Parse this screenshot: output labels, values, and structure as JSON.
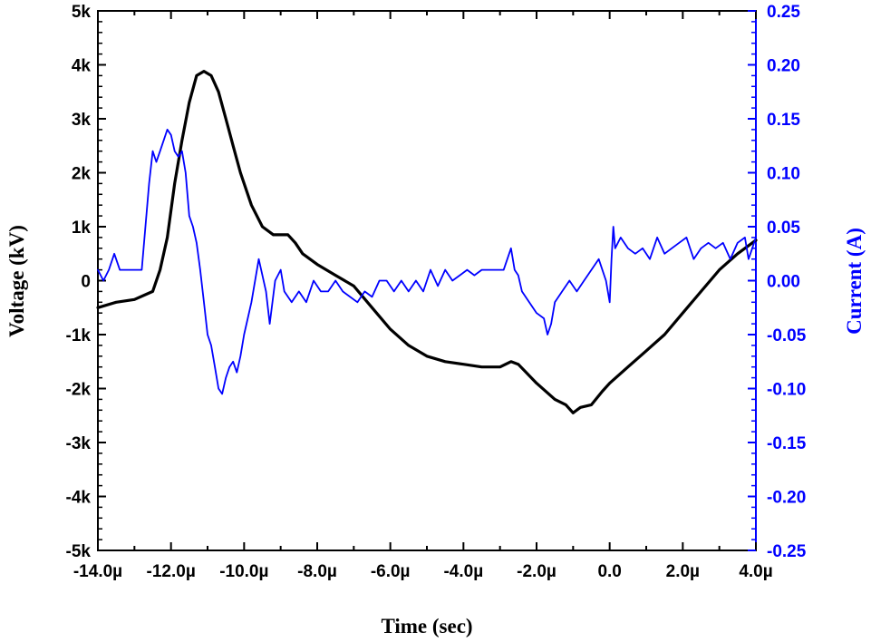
{
  "chart_data": {
    "type": "line",
    "xlabel": "Time (sec)",
    "ylabel_left": "Voltage (kV)",
    "ylabel_right": "Current (A)",
    "xlim": [
      -14.0,
      4.0
    ],
    "ylim_left": [
      -5,
      5
    ],
    "ylim_right": [
      -0.25,
      0.25
    ],
    "x_ticks": [
      -14,
      -12,
      -10,
      -8,
      -6,
      -4,
      -2,
      0,
      2,
      4
    ],
    "x_tick_labels": [
      "-14.0µ",
      "-12.0µ",
      "-10.0µ",
      "-8.0µ",
      "-6.0µ",
      "-4.0µ",
      "-2.0µ",
      "0.0",
      "2.0µ",
      "4.0µ"
    ],
    "y_left_ticks": [
      -5,
      -4,
      -3,
      -2,
      -1,
      0,
      1,
      2,
      3,
      4,
      5
    ],
    "y_left_tick_labels": [
      "-5k",
      "-4k",
      "-3k",
      "-2k",
      "-1k",
      "0",
      "1k",
      "2k",
      "3k",
      "4k",
      "5k"
    ],
    "y_right_ticks": [
      -0.25,
      -0.2,
      -0.15,
      -0.1,
      -0.05,
      0.0,
      0.05,
      0.1,
      0.15,
      0.2,
      0.25
    ],
    "y_right_tick_labels": [
      "-0.25",
      "-0.20",
      "-0.15",
      "-0.10",
      "-0.05",
      "0.00",
      "0.05",
      "0.10",
      "0.15",
      "0.20",
      "0.25"
    ],
    "grid": false,
    "colors": {
      "voltage": "#000000",
      "current": "#0000ff",
      "right_axis": "#0000ff"
    },
    "series": [
      {
        "axis": "left",
        "color": "#000000",
        "x": [
          -14.0,
          -13.5,
          -13.0,
          -12.5,
          -12.3,
          -12.1,
          -11.9,
          -11.7,
          -11.5,
          -11.3,
          -11.1,
          -10.9,
          -10.7,
          -10.5,
          -10.3,
          -10.1,
          -9.8,
          -9.5,
          -9.2,
          -9.0,
          -8.8,
          -8.6,
          -8.4,
          -8.0,
          -7.5,
          -7.0,
          -6.5,
          -6.0,
          -5.5,
          -5.0,
          -4.5,
          -4.0,
          -3.5,
          -3.0,
          -2.7,
          -2.5,
          -2.0,
          -1.5,
          -1.2,
          -1.0,
          -0.8,
          -0.5,
          -0.2,
          0.0,
          0.5,
          1.0,
          1.5,
          2.0,
          2.5,
          3.0,
          3.5,
          4.0
        ],
        "y": [
          -0.5,
          -0.4,
          -0.35,
          -0.2,
          0.2,
          0.8,
          1.8,
          2.6,
          3.3,
          3.8,
          3.88,
          3.8,
          3.5,
          3.0,
          2.5,
          2.0,
          1.4,
          1.0,
          0.85,
          0.85,
          0.85,
          0.7,
          0.5,
          0.3,
          0.1,
          -0.1,
          -0.5,
          -0.9,
          -1.2,
          -1.4,
          -1.5,
          -1.55,
          -1.6,
          -1.6,
          -1.5,
          -1.55,
          -1.9,
          -2.2,
          -2.3,
          -2.45,
          -2.35,
          -2.3,
          -2.05,
          -1.9,
          -1.6,
          -1.3,
          -1.0,
          -0.6,
          -0.2,
          0.2,
          0.5,
          0.75
        ]
      },
      {
        "axis": "right",
        "color": "#0000ff",
        "x": [
          -14.0,
          -13.85,
          -13.7,
          -13.55,
          -13.4,
          -13.3,
          -13.15,
          -13.0,
          -12.8,
          -12.6,
          -12.5,
          -12.4,
          -12.3,
          -12.2,
          -12.1,
          -12.0,
          -11.9,
          -11.8,
          -11.7,
          -11.6,
          -11.5,
          -11.4,
          -11.3,
          -11.2,
          -11.1,
          -11.0,
          -10.9,
          -10.8,
          -10.7,
          -10.6,
          -10.5,
          -10.4,
          -10.3,
          -10.2,
          -10.1,
          -10.0,
          -9.8,
          -9.6,
          -9.4,
          -9.3,
          -9.15,
          -9.0,
          -8.9,
          -8.7,
          -8.5,
          -8.3,
          -8.1,
          -7.9,
          -7.7,
          -7.5,
          -7.3,
          -7.1,
          -6.9,
          -6.7,
          -6.5,
          -6.3,
          -6.1,
          -5.9,
          -5.7,
          -5.5,
          -5.3,
          -5.1,
          -4.9,
          -4.7,
          -4.5,
          -4.3,
          -4.1,
          -3.9,
          -3.7,
          -3.5,
          -3.3,
          -3.1,
          -2.9,
          -2.7,
          -2.6,
          -2.5,
          -2.4,
          -2.2,
          -2.0,
          -1.8,
          -1.7,
          -1.6,
          -1.5,
          -1.3,
          -1.1,
          -0.9,
          -0.7,
          -0.5,
          -0.3,
          -0.1,
          0.0,
          0.05,
          0.1,
          0.15,
          0.3,
          0.5,
          0.7,
          0.9,
          1.1,
          1.3,
          1.5,
          1.7,
          1.9,
          2.1,
          2.3,
          2.5,
          2.7,
          2.9,
          3.1,
          3.3,
          3.5,
          3.7,
          3.8,
          3.9,
          4.0
        ],
        "y": [
          0.01,
          0.0,
          0.01,
          0.025,
          0.01,
          0.01,
          0.01,
          0.01,
          0.01,
          0.09,
          0.12,
          0.11,
          0.12,
          0.13,
          0.14,
          0.135,
          0.12,
          0.115,
          0.12,
          0.1,
          0.06,
          0.05,
          0.035,
          0.01,
          -0.02,
          -0.05,
          -0.06,
          -0.08,
          -0.1,
          -0.105,
          -0.09,
          -0.08,
          -0.075,
          -0.085,
          -0.07,
          -0.05,
          -0.02,
          0.02,
          -0.01,
          -0.04,
          0.0,
          0.01,
          -0.01,
          -0.02,
          -0.01,
          -0.02,
          0.0,
          -0.01,
          -0.01,
          0.0,
          -0.01,
          -0.015,
          -0.02,
          -0.01,
          -0.015,
          0.0,
          0.0,
          -0.01,
          0.0,
          -0.01,
          0.0,
          -0.01,
          0.01,
          -0.005,
          0.01,
          0.0,
          0.005,
          0.01,
          0.005,
          0.01,
          0.01,
          0.01,
          0.01,
          0.03,
          0.01,
          0.005,
          -0.01,
          -0.02,
          -0.03,
          -0.035,
          -0.05,
          -0.04,
          -0.02,
          -0.01,
          0.0,
          -0.01,
          0.0,
          0.01,
          0.02,
          0.0,
          -0.02,
          0.02,
          0.05,
          0.03,
          0.04,
          0.03,
          0.025,
          0.03,
          0.02,
          0.04,
          0.025,
          0.03,
          0.035,
          0.04,
          0.02,
          0.03,
          0.035,
          0.03,
          0.035,
          0.02,
          0.035,
          0.04,
          0.02,
          0.03,
          0.04
        ]
      }
    ]
  }
}
